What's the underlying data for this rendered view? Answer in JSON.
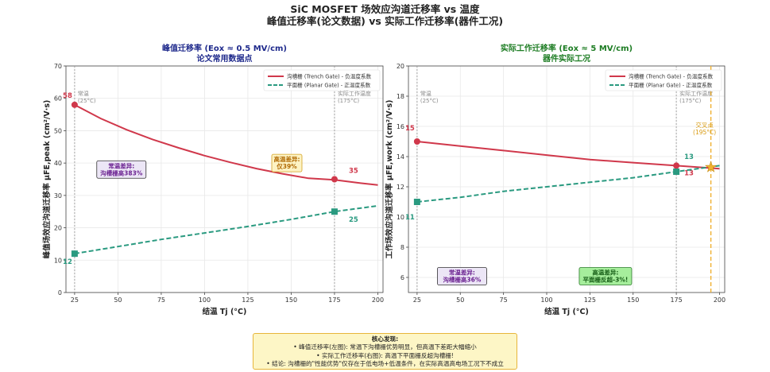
{
  "page": {
    "title_line1": "SiC MOSFET 场效应沟道迁移率 vs 温度",
    "title_line2": "峰值迁移率(论文数据) vs 实际工作迁移率(器件工况)"
  },
  "findings": {
    "title": "核心发现:",
    "lines": [
      "• 峰值迁移率(左图): 常温下沟槽栅优势明显，但高温下差距大幅缩小",
      "• 实际工作迁移率(右图): 高温下平面栅反超沟槽栅!",
      "• 结论: 沟槽栅的\"性能优势\"仅存在于低电场+低温条件，在实际高温高电场工况下不成立"
    ]
  },
  "colors": {
    "trench": "#d0384b",
    "planar": "#2a9a80",
    "left_title": "#1f2a8c",
    "right_title": "#1e7d24",
    "crossover": "#f0b030",
    "ref_line": "#9a9a9a"
  },
  "chart_data": [
    {
      "type": "line",
      "title": "峰值迁移率 (Eox ≈ 0.5 MV/cm)",
      "subtitle": "论文常用数据点",
      "xlabel": "结温 Tj (°C)",
      "ylabel": "峰值场效应沟道迁移率 μFE,peak (cm²/V·s)",
      "xlim": [
        20,
        203
      ],
      "ylim": [
        0,
        70
      ],
      "xticks": [
        25,
        50,
        75,
        100,
        125,
        150,
        175,
        200
      ],
      "yticks": [
        0,
        10,
        20,
        30,
        40,
        50,
        60,
        70
      ],
      "grid": true,
      "legend_position": "top-right",
      "series": [
        {
          "name": "沟槽栅 (Trench Gate) - 负温度系数",
          "color": "#d0384b",
          "style": "solid",
          "x": [
            25,
            40,
            55,
            70,
            85,
            100,
            115,
            130,
            145,
            160,
            175,
            190,
            200
          ],
          "y": [
            58,
            53.8,
            50.3,
            47.3,
            44.7,
            42.3,
            40.2,
            38.3,
            36.7,
            35.3,
            34.8,
            33.8,
            33.2
          ],
          "markers": [
            {
              "x": 25,
              "y": 58,
              "label": "58"
            },
            {
              "x": 175,
              "y": 35,
              "label": "35"
            }
          ]
        },
        {
          "name": "平面栅 (Planar Gate) - 正温度系数",
          "color": "#2a9a80",
          "style": "dashed",
          "x": [
            25,
            50,
            75,
            100,
            125,
            150,
            175,
            200
          ],
          "y": [
            12,
            14.2,
            16.4,
            18.4,
            20.4,
            22.6,
            25,
            26.8
          ],
          "markers": [
            {
              "x": 25,
              "y": 12,
              "label": "12"
            },
            {
              "x": 175,
              "y": 25,
              "label": "25"
            }
          ]
        }
      ],
      "reference_lines": [
        {
          "x": 25,
          "label_line1": "常温",
          "label_line2": "(25°C)"
        },
        {
          "x": 175,
          "label_line1": "实际工作温度",
          "label_line2": "(175°C)"
        }
      ],
      "annotations": [
        {
          "x": 52,
          "y": 35.3,
          "line1": "常温差异:",
          "line2": "沟槽栅高383%",
          "fill": "#ece6f6",
          "stroke": "#333333",
          "color": "#6a2090"
        },
        {
          "x": 147.5,
          "y": 37.3,
          "line1": "高温差异:",
          "line2": "仅39%",
          "fill": "#fdf3c4",
          "stroke": "#d4a020",
          "color": "#b06800"
        }
      ]
    },
    {
      "type": "line",
      "title": "实际工作迁移率 (Eox ≈ 5 MV/cm)",
      "subtitle": "器件实际工况",
      "xlabel": "结温 Tj (°C)",
      "ylabel": "工作场效应沟道迁移率 μFE,work (cm²/V·s)",
      "xlim": [
        20,
        203
      ],
      "ylim": [
        5,
        20
      ],
      "xticks": [
        25,
        50,
        75,
        100,
        125,
        150,
        175,
        200
      ],
      "yticks": [
        6,
        8,
        10,
        12,
        14,
        16,
        18,
        20
      ],
      "grid": true,
      "legend_position": "top-right",
      "series": [
        {
          "name": "沟槽栅 (Trench Gate) - 负温度系数",
          "color": "#d0384b",
          "style": "solid",
          "x": [
            25,
            50,
            75,
            100,
            125,
            150,
            175,
            200
          ],
          "y": [
            15,
            14.7,
            14.4,
            14.1,
            13.8,
            13.6,
            13.4,
            13.2
          ],
          "markers": [
            {
              "x": 25,
              "y": 15,
              "label": "15"
            },
            {
              "x": 175,
              "y": 13.4,
              "label": "13"
            }
          ]
        },
        {
          "name": "平面栅 (Planar Gate) - 正温度系数",
          "color": "#2a9a80",
          "style": "dashed",
          "x": [
            25,
            50,
            75,
            100,
            125,
            150,
            175,
            200
          ],
          "y": [
            11,
            11.3,
            11.7,
            12.0,
            12.3,
            12.6,
            13.0,
            13.4
          ],
          "markers": [
            {
              "x": 25,
              "y": 11,
              "label": "11"
            },
            {
              "x": 175,
              "y": 13.0,
              "label": "13"
            }
          ]
        }
      ],
      "reference_lines": [
        {
          "x": 25,
          "label_line1": "常温",
          "label_line2": "(25°C)"
        },
        {
          "x": 175,
          "label_line1": "实际工作温度",
          "label_line2": "(175°C)"
        }
      ],
      "crossover": {
        "x": 195,
        "y": 13.3,
        "label_line1": "交叉点",
        "label_line2": "(195°C)"
      },
      "annotations": [
        {
          "x": 51,
          "y": 5.5,
          "line1": "常温差异:",
          "line2": "沟槽栅高36%",
          "fill": "#ece6f6",
          "stroke": "#333333",
          "color": "#6a2090"
        },
        {
          "x": 134,
          "y": 5.5,
          "line1": "高温差异:",
          "line2": "平面栅反超-3%!",
          "fill": "#a6ee9c",
          "stroke": "#2c7a2c",
          "color": "#155c15"
        }
      ]
    }
  ]
}
